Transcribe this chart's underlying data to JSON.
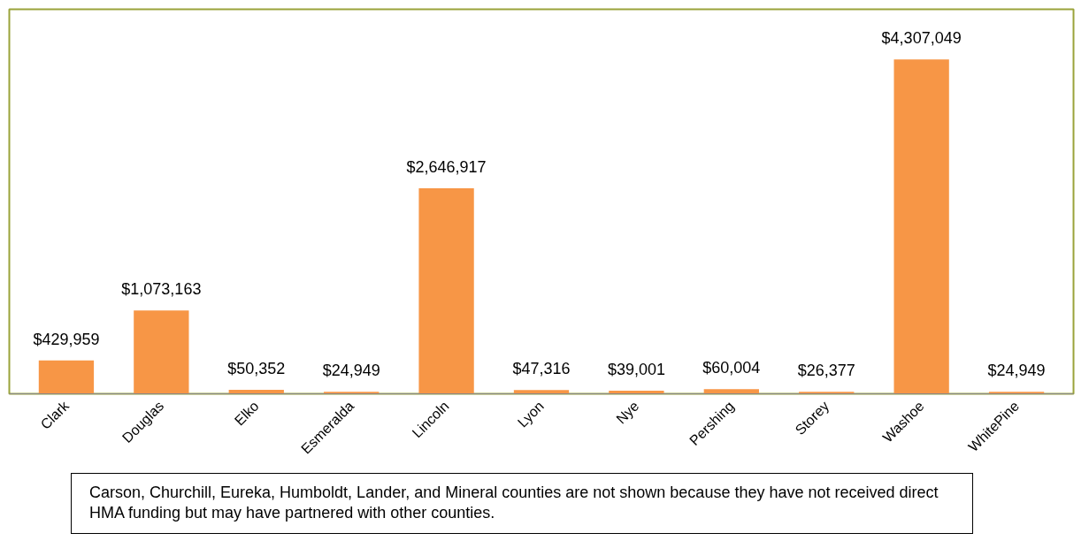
{
  "chart_data": {
    "type": "bar",
    "categories": [
      "Clark",
      "Douglas",
      "Elko",
      "Esmeralda",
      "Lincoln",
      "Lyon",
      "Nye",
      "Pershing",
      "Storey",
      "Washoe",
      "WhitePine"
    ],
    "values": [
      429959,
      1073163,
      50352,
      24949,
      2646917,
      47316,
      39001,
      60004,
      26377,
      4307049,
      24949
    ],
    "value_labels": [
      "$429,959",
      "$1,073,163",
      "$50,352",
      "$24,949",
      "$2,646,917",
      "$47,316",
      "$39,001",
      "$60,004",
      "$26,377",
      "$4,307,049",
      "$24,949"
    ],
    "color": "#f79646",
    "grid": false,
    "annotations": [
      "Carson, Churchill, Eureka, Humboldt, Lander, and Mineral counties are not shown because they have not received direct HMA funding but may have partnered with other counties."
    ]
  }
}
